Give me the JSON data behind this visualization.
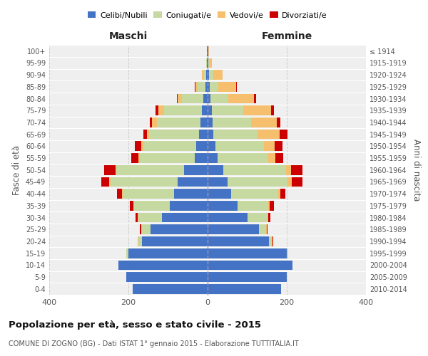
{
  "age_groups": [
    "100+",
    "95-99",
    "90-94",
    "85-89",
    "80-84",
    "75-79",
    "70-74",
    "65-69",
    "60-64",
    "55-59",
    "50-54",
    "45-49",
    "40-44",
    "35-39",
    "30-34",
    "25-29",
    "20-24",
    "15-19",
    "10-14",
    "5-9",
    "0-4"
  ],
  "birth_years": [
    "≤ 1914",
    "1915-1919",
    "1920-1924",
    "1925-1929",
    "1930-1934",
    "1935-1939",
    "1940-1944",
    "1945-1949",
    "1950-1954",
    "1955-1959",
    "1960-1964",
    "1965-1969",
    "1970-1974",
    "1975-1979",
    "1980-1984",
    "1985-1989",
    "1990-1994",
    "1995-1999",
    "2000-2004",
    "2005-2009",
    "2010-2014"
  ],
  "maschi": {
    "celibi": [
      1,
      1,
      3,
      5,
      10,
      15,
      18,
      22,
      28,
      32,
      60,
      75,
      85,
      95,
      115,
      145,
      165,
      200,
      225,
      205,
      190
    ],
    "coniugati": [
      1,
      2,
      8,
      20,
      55,
      95,
      110,
      125,
      135,
      140,
      170,
      170,
      130,
      90,
      60,
      22,
      10,
      5,
      0,
      0,
      0
    ],
    "vedovi": [
      0,
      1,
      4,
      6,
      10,
      15,
      12,
      6,
      5,
      3,
      3,
      3,
      2,
      2,
      1,
      1,
      1,
      0,
      0,
      0,
      0
    ],
    "divorziati": [
      0,
      0,
      0,
      1,
      2,
      6,
      6,
      10,
      15,
      18,
      28,
      20,
      12,
      10,
      6,
      3,
      1,
      0,
      0,
      0,
      0
    ]
  },
  "femmine": {
    "nubili": [
      1,
      2,
      3,
      5,
      8,
      10,
      12,
      15,
      20,
      25,
      40,
      50,
      60,
      75,
      100,
      130,
      155,
      200,
      215,
      200,
      185
    ],
    "coniugate": [
      1,
      3,
      12,
      22,
      45,
      80,
      98,
      112,
      122,
      128,
      158,
      152,
      118,
      78,
      52,
      18,
      8,
      4,
      0,
      0,
      0
    ],
    "vedove": [
      1,
      6,
      22,
      45,
      65,
      70,
      65,
      55,
      28,
      18,
      12,
      10,
      6,
      4,
      2,
      1,
      1,
      0,
      0,
      0,
      0
    ],
    "divorziate": [
      0,
      0,
      1,
      2,
      5,
      8,
      8,
      20,
      20,
      20,
      30,
      28,
      12,
      10,
      5,
      2,
      1,
      0,
      0,
      0,
      0
    ]
  },
  "colors": {
    "celibi": "#4472c4",
    "coniugati": "#c5d9a0",
    "vedovi": "#f5bf6e",
    "divorziati": "#cc0000"
  },
  "xlim": 400,
  "title": "Popolazione per età, sesso e stato civile - 2015",
  "subtitle": "COMUNE DI ZOGNO (BG) - Dati ISTAT 1° gennaio 2015 - Elaborazione TUTTITALIA.IT",
  "ylabel_left": "Fasce di età",
  "ylabel_right": "Anni di nascita",
  "xlabel_maschi": "Maschi",
  "xlabel_femmine": "Femmine",
  "legend_labels": [
    "Celibi/Nubili",
    "Coniugati/e",
    "Vedovi/e",
    "Divorziati/e"
  ],
  "bg_color": "#ffffff",
  "plot_bg_color": "#efefef"
}
